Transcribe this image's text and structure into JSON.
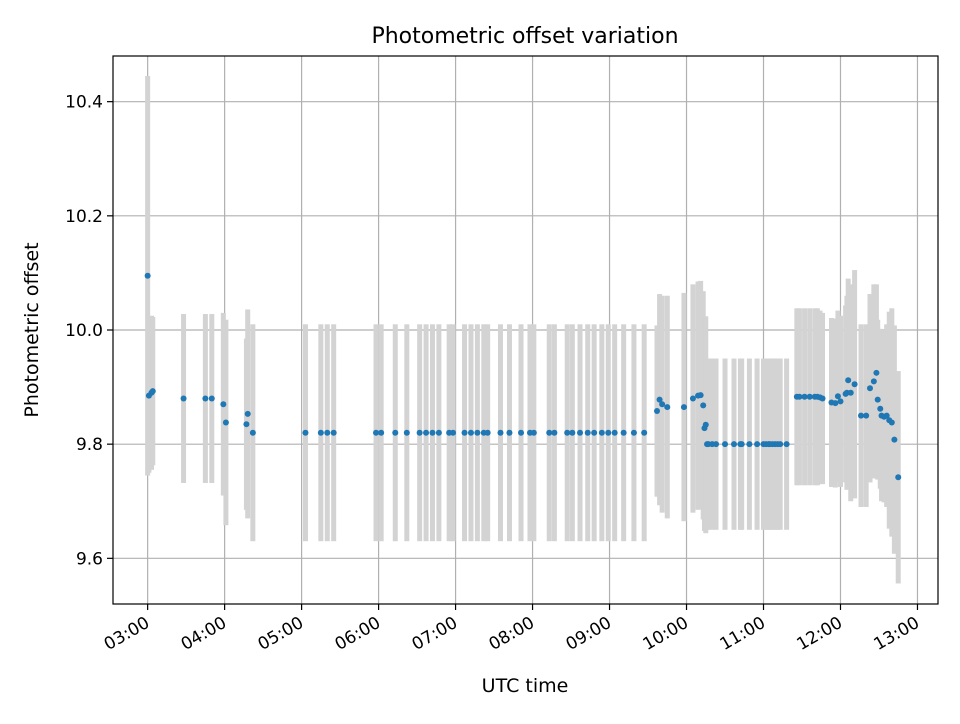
{
  "chart_data": {
    "type": "scatter",
    "title": "Photometric offset variation",
    "xlabel": "UTC time",
    "ylabel": "Photometric offset",
    "x_ticks": [
      "03:00",
      "04:00",
      "05:00",
      "06:00",
      "07:00",
      "08:00",
      "09:00",
      "10:00",
      "11:00",
      "12:00",
      "13:00"
    ],
    "y_ticks": [
      "9.6",
      "9.8",
      "10.0",
      "10.2",
      "10.4"
    ],
    "xlim": [
      "02:33",
      "13:16"
    ],
    "ylim": [
      9.52,
      10.48
    ],
    "grid": true,
    "colors": {
      "points": "#1f77b4",
      "errorbars": "#d3d3d3",
      "grid": "#b0b0b0"
    },
    "series": [
      {
        "x": [
          "03:00",
          "03:01",
          "03:03",
          "03:04",
          "03:28",
          "03:45",
          "03:50",
          "03:59",
          "04:01",
          "04:17",
          "04:18",
          "04:22",
          "05:03",
          "05:15",
          "05:20",
          "05:25",
          "05:58",
          "06:02",
          "06:13",
          "06:22",
          "06:32",
          "06:37",
          "06:42",
          "06:47",
          "06:55",
          "06:58",
          "07:07",
          "07:12",
          "07:17",
          "07:22",
          "07:25",
          "07:35",
          "07:42",
          "07:51",
          "07:58",
          "08:01",
          "08:13",
          "08:17",
          "08:27",
          "08:31",
          "08:37",
          "08:43",
          "08:48",
          "08:54",
          "08:59",
          "09:04",
          "09:11",
          "09:19",
          "09:27",
          "09:37",
          "09:39",
          "09:41",
          "09:45",
          "09:58",
          "10:05",
          "10:09",
          "10:11",
          "10:13",
          "10:14",
          "10:15",
          "10:16",
          "10:17",
          "10:20",
          "10:23",
          "10:30",
          "10:37",
          "10:42",
          "10:43",
          "10:49",
          "10:55",
          "11:00",
          "11:02",
          "11:04",
          "11:05",
          "11:07",
          "11:09",
          "11:11",
          "11:13",
          "11:18",
          "11:26",
          "11:28",
          "11:32",
          "11:36",
          "11:40",
          "11:42",
          "11:44",
          "11:46",
          "11:53",
          "11:56",
          "11:58",
          "12:00",
          "12:04",
          "12:05",
          "12:06",
          "12:08",
          "12:11",
          "12:16",
          "12:20",
          "12:23",
          "12:26",
          "12:28",
          "12:29",
          "12:31",
          "12:32",
          "12:34",
          "12:36",
          "12:38",
          "12:40",
          "12:42",
          "12:45"
        ],
        "y": [
          10.095,
          9.885,
          9.89,
          9.893,
          9.88,
          9.88,
          9.88,
          9.87,
          9.838,
          9.835,
          9.853,
          9.82,
          9.82,
          9.82,
          9.82,
          9.82,
          9.82,
          9.82,
          9.82,
          9.82,
          9.82,
          9.82,
          9.82,
          9.82,
          9.82,
          9.82,
          9.82,
          9.82,
          9.82,
          9.82,
          9.82,
          9.82,
          9.82,
          9.82,
          9.82,
          9.82,
          9.82,
          9.82,
          9.82,
          9.82,
          9.82,
          9.82,
          9.82,
          9.82,
          9.82,
          9.82,
          9.82,
          9.82,
          9.82,
          9.858,
          9.878,
          9.87,
          9.865,
          9.865,
          9.88,
          9.885,
          9.886,
          9.868,
          9.828,
          9.834,
          9.8,
          9.8,
          9.8,
          9.8,
          9.8,
          9.8,
          9.8,
          9.8,
          9.8,
          9.8,
          9.8,
          9.8,
          9.8,
          9.8,
          9.8,
          9.8,
          9.8,
          9.8,
          9.8,
          9.883,
          9.883,
          9.883,
          9.883,
          9.883,
          9.883,
          9.882,
          9.88,
          9.873,
          9.872,
          9.884,
          9.875,
          9.888,
          9.89,
          9.912,
          9.89,
          9.905,
          9.85,
          9.85,
          9.898,
          9.91,
          9.925,
          9.878,
          9.862,
          9.85,
          9.848,
          9.85,
          9.842,
          9.838,
          9.808,
          9.742
        ],
        "err": [
          0.35,
          0.135,
          0.135,
          0.13,
          0.148,
          0.148,
          0.148,
          0.16,
          0.18,
          0.15,
          0.183,
          0.19,
          0.19,
          0.19,
          0.19,
          0.19,
          0.19,
          0.19,
          0.19,
          0.19,
          0.19,
          0.19,
          0.19,
          0.19,
          0.19,
          0.19,
          0.19,
          0.19,
          0.19,
          0.19,
          0.19,
          0.19,
          0.19,
          0.19,
          0.19,
          0.19,
          0.19,
          0.19,
          0.19,
          0.19,
          0.19,
          0.19,
          0.19,
          0.19,
          0.19,
          0.19,
          0.19,
          0.19,
          0.19,
          0.15,
          0.185,
          0.19,
          0.195,
          0.2,
          0.2,
          0.2,
          0.2,
          0.2,
          0.18,
          0.19,
          0.15,
          0.15,
          0.15,
          0.15,
          0.15,
          0.15,
          0.15,
          0.15,
          0.15,
          0.15,
          0.15,
          0.15,
          0.15,
          0.15,
          0.15,
          0.15,
          0.15,
          0.15,
          0.15,
          0.155,
          0.155,
          0.155,
          0.155,
          0.155,
          0.155,
          0.152,
          0.15,
          0.148,
          0.148,
          0.15,
          0.15,
          0.155,
          0.17,
          0.178,
          0.19,
          0.2,
          0.16,
          0.16,
          0.165,
          0.17,
          0.155,
          0.14,
          0.14,
          0.15,
          0.15,
          0.16,
          0.19,
          0.2,
          0.2,
          0.186
        ]
      }
    ]
  }
}
